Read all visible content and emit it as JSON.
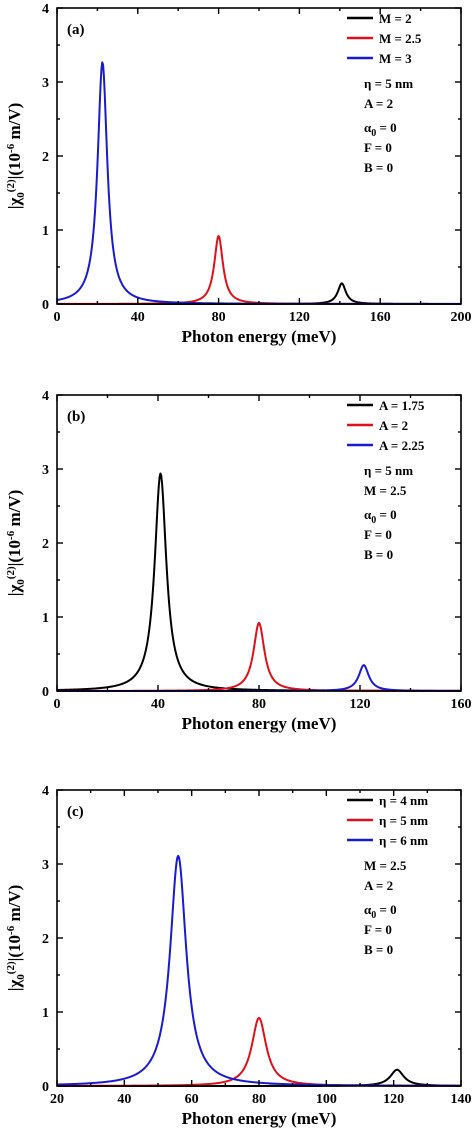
{
  "chart_data": [
    {
      "type": "line",
      "panel_label": "(a)",
      "xlabel": "Photon energy (meV)",
      "ylabel": "|χ0(2)|(10-6 m/V)",
      "xlim": [
        0,
        200
      ],
      "ylim": [
        0,
        4
      ],
      "xticks": [
        "0",
        "40",
        "80",
        "120",
        "160",
        "200"
      ],
      "xtick_values": [
        0,
        40,
        80,
        120,
        160,
        200
      ],
      "yticks": [
        "0",
        "1",
        "2",
        "3",
        "4"
      ],
      "ytick_values": [
        0,
        1,
        2,
        3,
        4
      ],
      "legend_position": "top-right",
      "series": [
        {
          "name": "M = 2",
          "color": "#000000",
          "peak_x": 141,
          "peak_y": 0.28,
          "width": 2.4
        },
        {
          "name": "M = 2.5",
          "color": "#e0101a",
          "peak_x": 80,
          "peak_y": 0.92,
          "width": 2.6
        },
        {
          "name": "M = 3",
          "color": "#1a1ad0",
          "peak_x": 22.5,
          "peak_y": 3.27,
          "width": 2.9
        }
      ],
      "params": [
        "η = 5 nm",
        "A = 2",
        "α0 = 0",
        "F = 0",
        "B = 0"
      ]
    },
    {
      "type": "line",
      "panel_label": "(b)",
      "xlabel": "Photon energy (meV)",
      "ylabel": "|χ0(2)|(10-6 m/V)",
      "xlim": [
        0,
        160
      ],
      "ylim": [
        0,
        4
      ],
      "xticks": [
        "0",
        "40",
        "80",
        "120",
        "160"
      ],
      "xtick_values": [
        0,
        40,
        80,
        120,
        160
      ],
      "yticks": [
        "0",
        "1",
        "2",
        "3",
        "4"
      ],
      "ytick_values": [
        0,
        1,
        2,
        3,
        4
      ],
      "legend_position": "top-right",
      "series": [
        {
          "name": "A = 1.75",
          "color": "#000000",
          "peak_x": 41,
          "peak_y": 2.94,
          "width": 2.8
        },
        {
          "name": "A = 2",
          "color": "#e0101a",
          "peak_x": 80,
          "peak_y": 0.92,
          "width": 2.6
        },
        {
          "name": "A = 2.25",
          "color": "#1a1ad0",
          "peak_x": 121.5,
          "peak_y": 0.35,
          "width": 2.4
        }
      ],
      "params": [
        "η = 5 nm",
        "M = 2.5",
        "α0 = 0",
        "F = 0",
        "B = 0"
      ]
    },
    {
      "type": "line",
      "panel_label": "(c)",
      "xlabel": "Photon energy (meV)",
      "ylabel": "|χ0(2)|(10-6 m/V)",
      "xlim": [
        20,
        140
      ],
      "ylim": [
        0,
        4
      ],
      "xticks": [
        "20",
        "40",
        "60",
        "80",
        "100",
        "120",
        "140"
      ],
      "xtick_values": [
        20,
        40,
        60,
        80,
        100,
        120,
        140
      ],
      "yticks": [
        "0",
        "1",
        "2",
        "3",
        "4"
      ],
      "ytick_values": [
        0,
        1,
        2,
        3,
        4
      ],
      "legend_position": "top-right",
      "series": [
        {
          "name": "η = 4 nm",
          "color": "#000000",
          "peak_x": 121,
          "peak_y": 0.22,
          "width": 2.4
        },
        {
          "name": "η = 5 nm",
          "color": "#e0101a",
          "peak_x": 80,
          "peak_y": 0.92,
          "width": 2.6
        },
        {
          "name": "η = 6 nm",
          "color": "#1a1ad0",
          "peak_x": 56,
          "peak_y": 3.11,
          "width": 2.9
        }
      ],
      "params": [
        "M = 2.5",
        "A = 2",
        "α0 = 0",
        "F = 0",
        "B = 0"
      ]
    }
  ]
}
